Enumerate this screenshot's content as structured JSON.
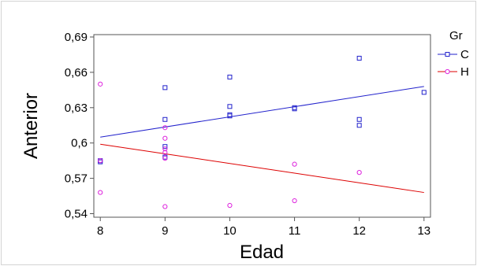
{
  "chart_data": {
    "type": "scatter",
    "xlabel": "Edad",
    "ylabel": "Anterior",
    "xlim": [
      7.9,
      13.1
    ],
    "ylim": [
      0.537,
      0.692
    ],
    "xticks": [
      8,
      9,
      10,
      11,
      12,
      13
    ],
    "yticks": [
      0.54,
      0.57,
      0.6,
      0.63,
      0.66,
      0.69
    ],
    "xtick_labels": [
      "8",
      "9",
      "10",
      "11",
      "12",
      "13"
    ],
    "ytick_labels": [
      "0,54",
      "0,57",
      "0,6",
      "0,63",
      "0,66",
      "0,69"
    ],
    "grid": false,
    "legend": {
      "title": "Gr",
      "placement": "right"
    },
    "series": [
      {
        "name": "C",
        "marker": "square",
        "color": "#2222cc",
        "points": [
          [
            8,
            0.585
          ],
          [
            8,
            0.584
          ],
          [
            9,
            0.647
          ],
          [
            9,
            0.62
          ],
          [
            9,
            0.597
          ],
          [
            9,
            0.588
          ],
          [
            10,
            0.656
          ],
          [
            10,
            0.631
          ],
          [
            10,
            0.624
          ],
          [
            10,
            0.623
          ],
          [
            11,
            0.63
          ],
          [
            11,
            0.629
          ],
          [
            12,
            0.672
          ],
          [
            12,
            0.62
          ],
          [
            12,
            0.615
          ],
          [
            13,
            0.643
          ]
        ],
        "fit_line": [
          [
            8,
            0.605
          ],
          [
            13,
            0.648
          ]
        ]
      },
      {
        "name": "H",
        "marker": "circle",
        "color": "#dd22dd",
        "line_color": "#dd0000",
        "points": [
          [
            8,
            0.65
          ],
          [
            8,
            0.585
          ],
          [
            8,
            0.558
          ],
          [
            9,
            0.613
          ],
          [
            9,
            0.604
          ],
          [
            9,
            0.595
          ],
          [
            9,
            0.592
          ],
          [
            9,
            0.587
          ],
          [
            9,
            0.546
          ],
          [
            10,
            0.547
          ],
          [
            11,
            0.582
          ],
          [
            11,
            0.551
          ],
          [
            12,
            0.575
          ]
        ],
        "fit_line": [
          [
            8,
            0.599
          ],
          [
            13,
            0.558
          ]
        ]
      }
    ]
  }
}
